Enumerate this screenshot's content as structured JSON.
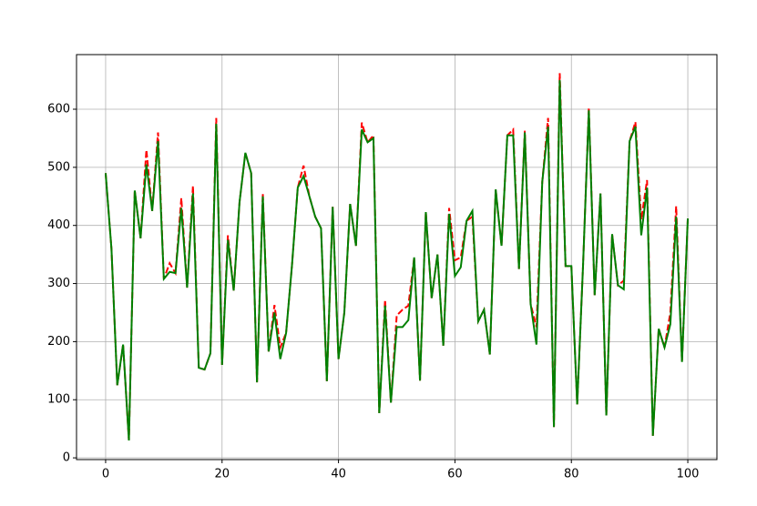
{
  "chart_data": {
    "type": "line",
    "x": [
      0,
      1,
      2,
      3,
      4,
      5,
      6,
      7,
      8,
      9,
      10,
      11,
      12,
      13,
      14,
      15,
      16,
      17,
      18,
      19,
      20,
      21,
      22,
      23,
      24,
      25,
      26,
      27,
      28,
      29,
      30,
      31,
      32,
      33,
      34,
      35,
      36,
      37,
      38,
      39,
      40,
      41,
      42,
      43,
      44,
      45,
      46,
      47,
      48,
      49,
      50,
      51,
      52,
      53,
      54,
      55,
      56,
      57,
      58,
      59,
      60,
      61,
      62,
      63,
      64,
      65,
      66,
      67,
      68,
      69,
      70,
      71,
      72,
      73,
      74,
      75,
      76,
      77,
      78,
      79,
      80,
      81,
      82,
      83,
      84,
      85,
      86,
      87,
      88,
      89,
      90,
      91,
      92,
      93,
      94,
      95,
      96,
      97,
      98,
      99,
      100
    ],
    "series": [
      {
        "color": "#ff0000",
        "dashed": true,
        "values": [
          490,
          360,
          125,
          195,
          30,
          460,
          378,
          530,
          425,
          560,
          308,
          335,
          318,
          447,
          293,
          468,
          155,
          152,
          180,
          585,
          160,
          383,
          288,
          440,
          525,
          490,
          130,
          455,
          183,
          263,
          190,
          215,
          330,
          465,
          503,
          450,
          415,
          395,
          132,
          432,
          170,
          250,
          437,
          365,
          577,
          543,
          555,
          77,
          272,
          95,
          245,
          255,
          262,
          345,
          133,
          423,
          275,
          350,
          193,
          430,
          340,
          345,
          408,
          415,
          235,
          255,
          178,
          462,
          365,
          555,
          565,
          325,
          563,
          265,
          225,
          475,
          585,
          53,
          662,
          330,
          330,
          92,
          330,
          603,
          280,
          455,
          73,
          385,
          297,
          305,
          545,
          578,
          410,
          478,
          38,
          222,
          190,
          250,
          433,
          165,
          412
        ]
      },
      {
        "color": "#008000",
        "dashed": false,
        "values": [
          490,
          360,
          125,
          195,
          30,
          460,
          378,
          505,
          425,
          545,
          308,
          320,
          318,
          430,
          293,
          455,
          155,
          152,
          180,
          575,
          160,
          375,
          288,
          440,
          525,
          490,
          130,
          450,
          183,
          250,
          170,
          215,
          330,
          465,
          485,
          450,
          415,
          395,
          132,
          432,
          170,
          250,
          437,
          365,
          565,
          543,
          550,
          77,
          262,
          95,
          225,
          225,
          237,
          345,
          133,
          423,
          275,
          350,
          193,
          420,
          313,
          328,
          408,
          425,
          235,
          255,
          178,
          462,
          365,
          555,
          555,
          325,
          560,
          265,
          195,
          475,
          570,
          53,
          650,
          330,
          330,
          92,
          330,
          598,
          280,
          455,
          73,
          385,
          297,
          290,
          545,
          570,
          383,
          465,
          38,
          222,
          190,
          230,
          415,
          165,
          412
        ]
      }
    ],
    "xlim": [
      -5,
      105
    ],
    "ylim": [
      -3,
      694
    ],
    "xticks": [
      0,
      20,
      40,
      60,
      80,
      100
    ],
    "yticks": [
      0,
      100,
      200,
      300,
      400,
      500,
      600
    ],
    "grid": true
  }
}
